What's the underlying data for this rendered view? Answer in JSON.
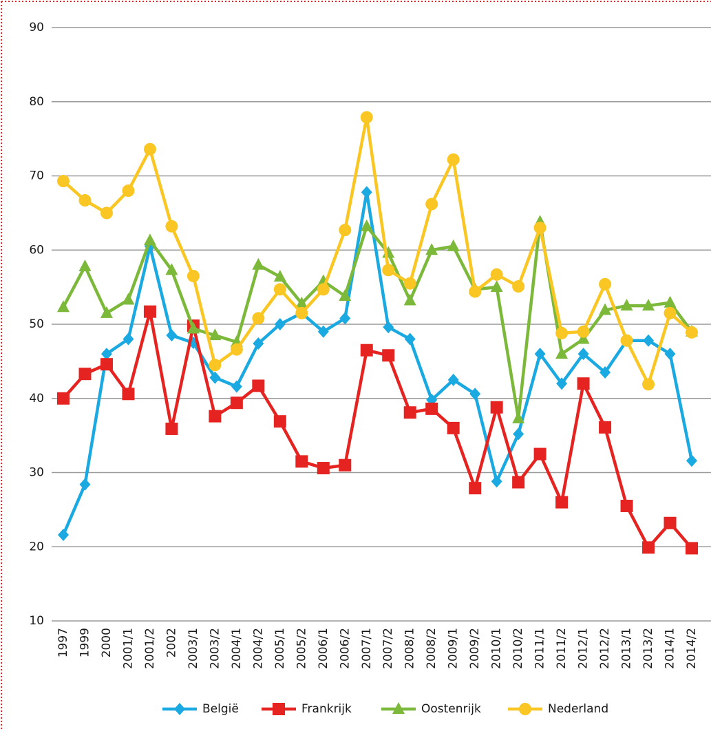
{
  "chart_data": {
    "type": "line",
    "categories": [
      "1997",
      "1999",
      "2000",
      "2001/1",
      "2001/2",
      "2002",
      "2003/1",
      "2003/2",
      "2004/1",
      "2004/2",
      "2005/1",
      "2005/2",
      "2006/1",
      "2006/2",
      "2007/1",
      "2007/2",
      "2008/1",
      "2008/2",
      "2009/1",
      "2009/2",
      "2010/1",
      "2010/2",
      "2011/1",
      "2011/2",
      "2012/1",
      "2012/2",
      "2013/1",
      "2013/2",
      "2014/1",
      "2014/2"
    ],
    "series": [
      {
        "name": "België",
        "color": "#1ba9e1",
        "marker": "diamond",
        "values": [
          21.6,
          28.4,
          46,
          48,
          60.5,
          48.5,
          47.5,
          42.8,
          41.6,
          47.4,
          50,
          51.5,
          49,
          50.8,
          67.8,
          49.6,
          48,
          39.8,
          42.5,
          40.6,
          28.8,
          35.2,
          46,
          42,
          46,
          43.5,
          47.8,
          47.8,
          46,
          31.6
        ]
      },
      {
        "name": "Frankrijk",
        "color": "#e52421",
        "marker": "square",
        "values": [
          40,
          43.3,
          44.6,
          40.6,
          51.7,
          35.9,
          49.8,
          37.6,
          39.4,
          41.7,
          36.9,
          31.5,
          30.6,
          31,
          46.5,
          45.8,
          38.1,
          38.6,
          36,
          27.9,
          38.8,
          28.7,
          32.5,
          26,
          42,
          36.1,
          25.5,
          19.9,
          23.2,
          19.8
        ]
      },
      {
        "name": "Oostenrijk",
        "color": "#7cb83a",
        "marker": "triangle",
        "values": [
          52.3,
          57.8,
          51.5,
          53.3,
          61.3,
          57.3,
          49.4,
          48.5,
          47.6,
          58,
          56.4,
          52.8,
          55.8,
          53.8,
          63.2,
          59.6,
          53.2,
          60,
          60.5,
          54.7,
          55,
          37.3,
          63.8,
          46,
          48,
          51.9,
          52.5,
          52.5,
          52.9,
          49
        ]
      },
      {
        "name": "Nederland",
        "color": "#f9c623",
        "marker": "circle",
        "values": [
          69.3,
          66.7,
          65,
          68,
          73.6,
          63.2,
          56.5,
          44.5,
          46.6,
          50.8,
          54.7,
          51.5,
          54.7,
          62.7,
          77.9,
          57.3,
          55.5,
          66.2,
          72.2,
          54.4,
          56.7,
          55.1,
          63,
          48.8,
          49,
          55.4,
          47.8,
          41.9,
          51.5,
          48.9
        ]
      }
    ],
    "ylim": [
      10,
      90
    ],
    "yticks": [
      10,
      20,
      30,
      40,
      50,
      60,
      70,
      80,
      90
    ],
    "grid": true,
    "legend": "bottom"
  }
}
